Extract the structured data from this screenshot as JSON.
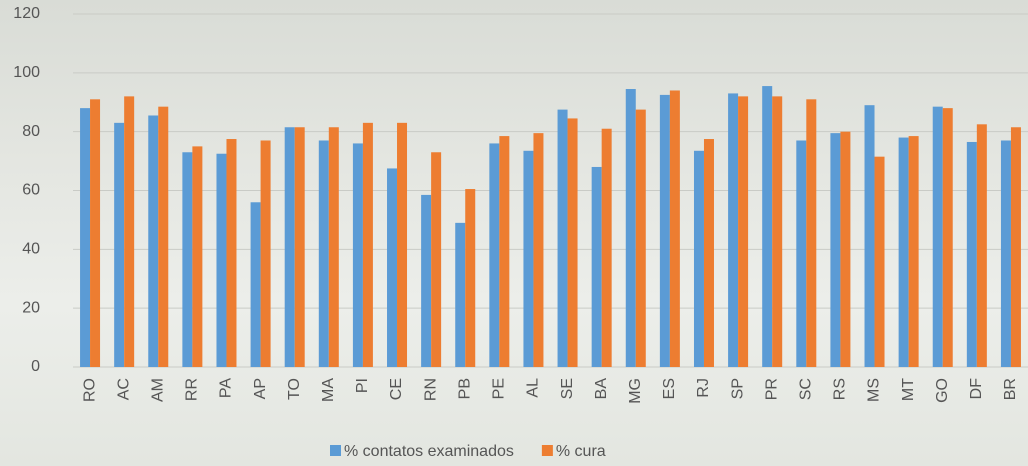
{
  "chart_data": {
    "type": "bar",
    "categories": [
      "RO",
      "AC",
      "AM",
      "RR",
      "PA",
      "AP",
      "TO",
      "MA",
      "PI",
      "CE",
      "RN",
      "PB",
      "PE",
      "AL",
      "SE",
      "BA",
      "MG",
      "ES",
      "RJ",
      "SP",
      "PR",
      "SC",
      "RS",
      "MS",
      "MT",
      "GO",
      "DF",
      "BR"
    ],
    "series": [
      {
        "name": "% contatos examinados",
        "color": "#5b9bd5",
        "values": [
          88,
          83,
          85.5,
          73,
          72.5,
          56,
          81.5,
          77,
          76,
          67.5,
          58.5,
          49,
          76,
          73.5,
          87.5,
          68,
          94.5,
          92.5,
          73.5,
          93,
          95.5,
          77,
          79.5,
          89,
          78,
          88.5,
          76.5,
          77
        ]
      },
      {
        "name": "% cura",
        "color": "#ed7d31",
        "values": [
          91,
          92,
          88.5,
          75,
          77.5,
          77,
          81.5,
          81.5,
          83,
          83,
          73,
          60.5,
          78.5,
          79.5,
          84.5,
          81,
          87.5,
          94,
          77.5,
          92,
          92,
          91,
          80,
          71.5,
          78.5,
          88,
          82.5,
          81.5
        ]
      }
    ],
    "ylim": [
      0,
      120
    ],
    "yticks": [
      0,
      20,
      40,
      60,
      80,
      100,
      120
    ],
    "grid": true,
    "legend": "bottom"
  }
}
